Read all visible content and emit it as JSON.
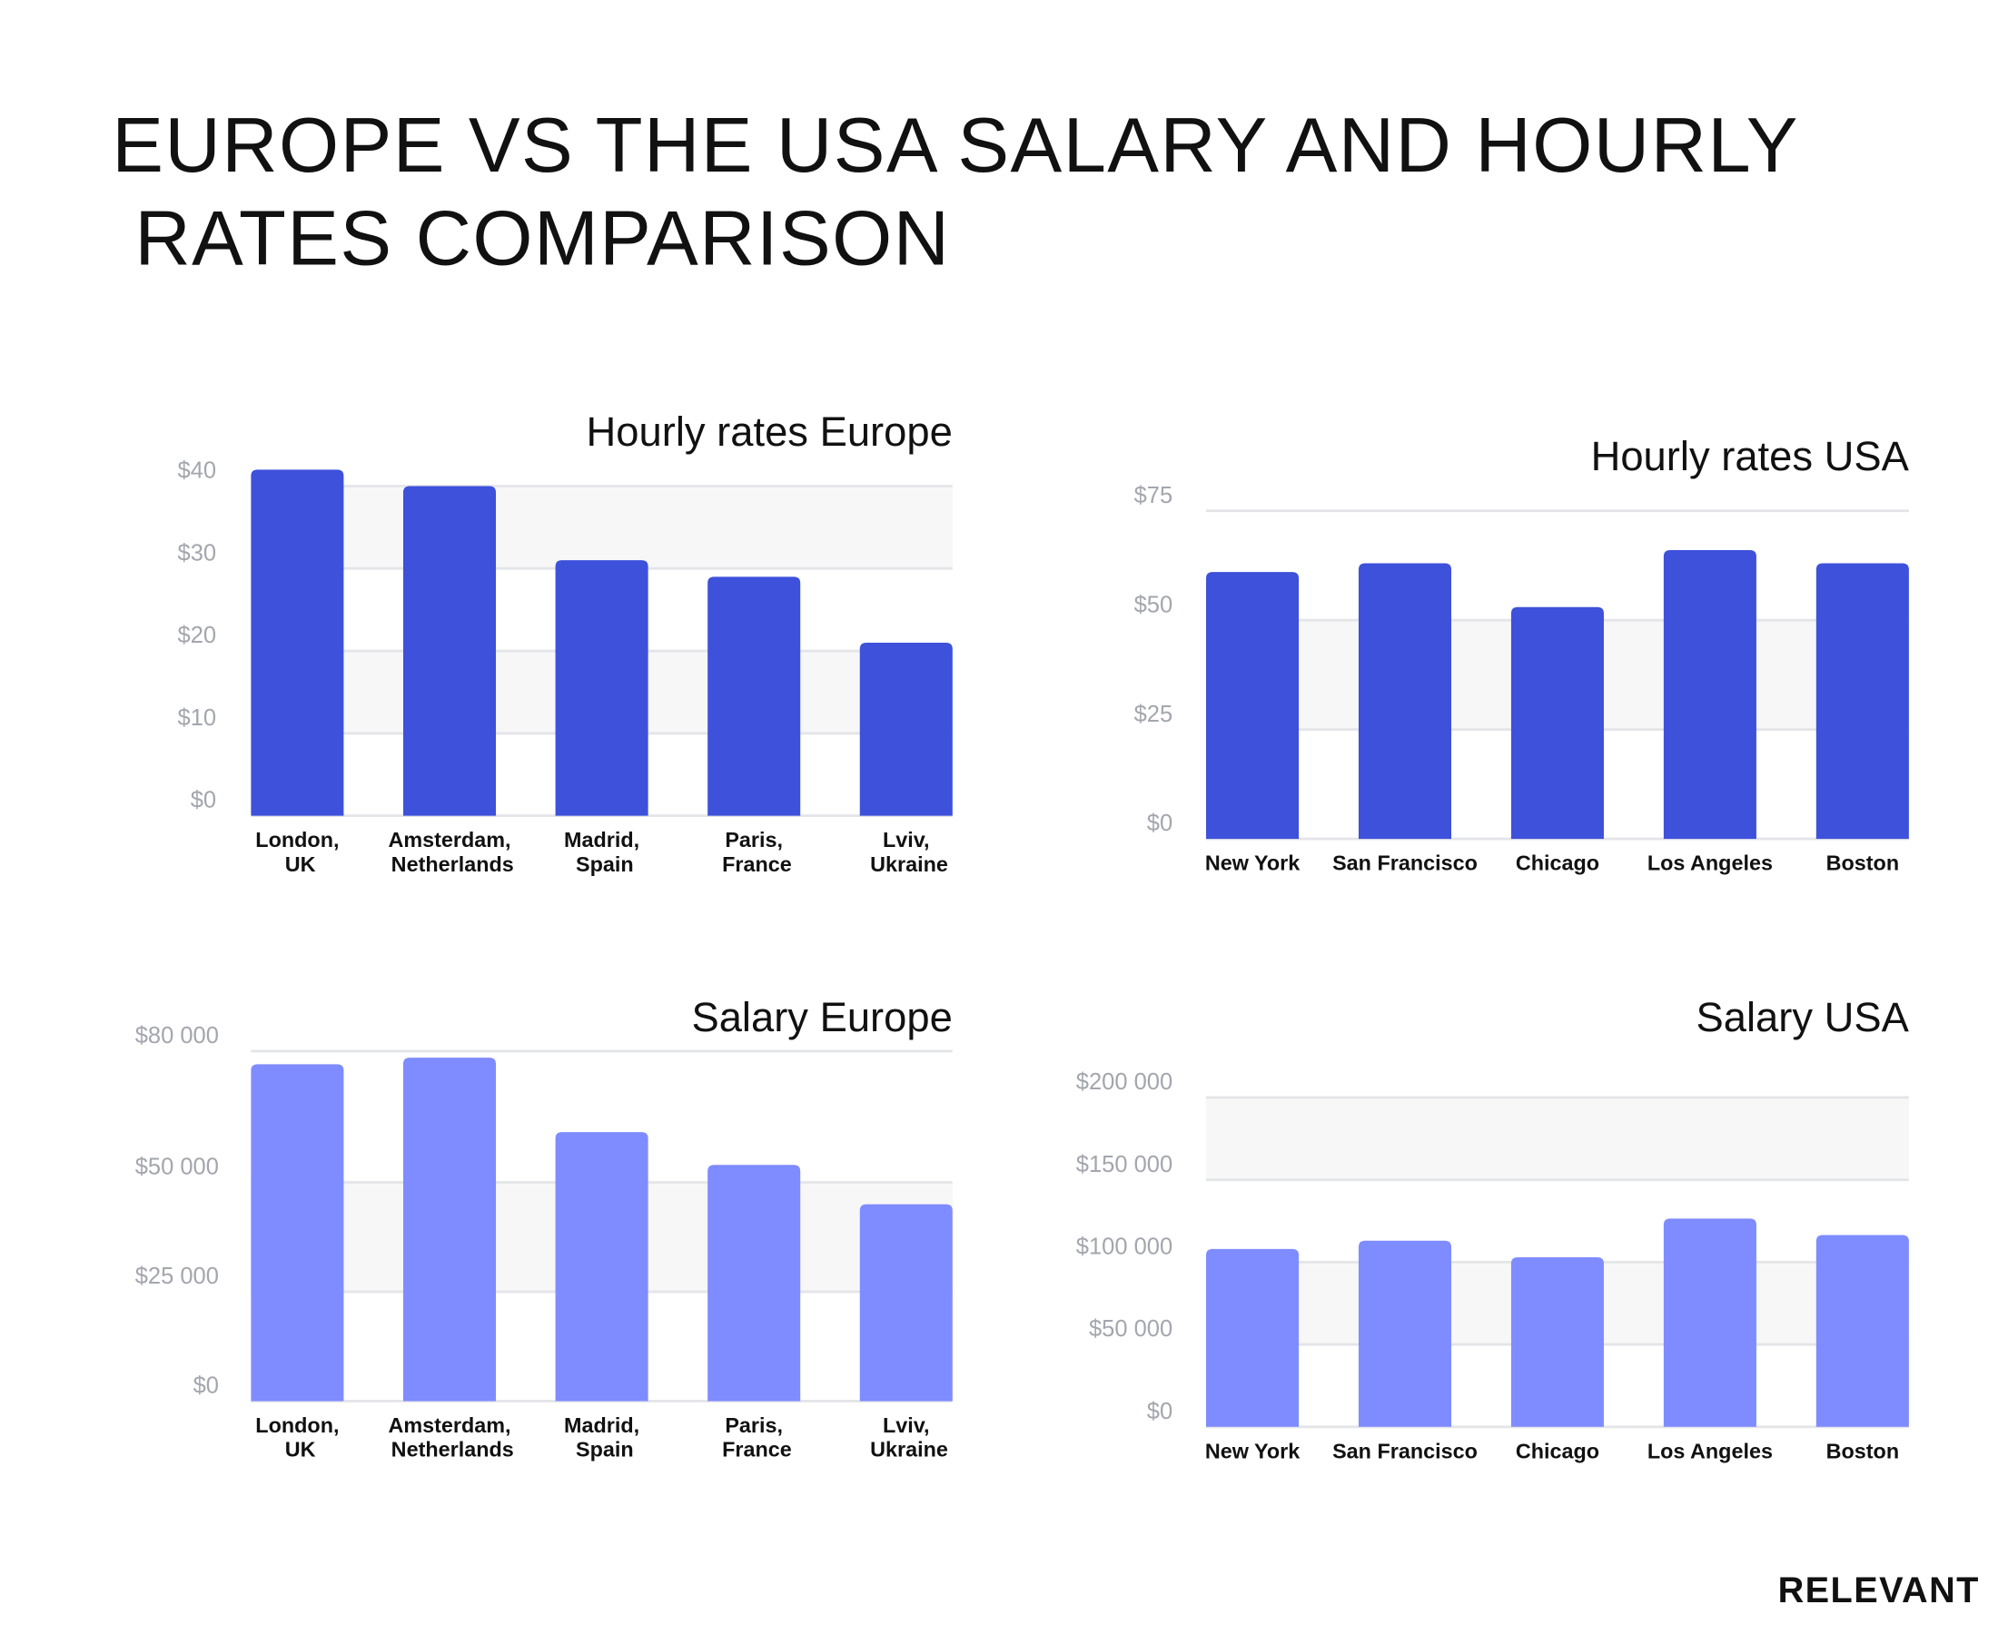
{
  "title": "EUROPE VS THE USA SALARY AND HOURLY RATES COMPARISON",
  "brand": "RELEVANT",
  "chart_data": [
    {
      "type": "bar",
      "title": "Hourly rates Europe",
      "categories": [
        "London, UK",
        "Amsterdam, Netherlands",
        "Madrid, Spain",
        "Paris, France",
        "Lviv, Ukraine"
      ],
      "values": [
        42,
        40,
        31,
        29,
        21
      ],
      "color": "#3d51db",
      "ylim": [
        0,
        42
      ],
      "yticks": [
        {
          "value": 0,
          "label": "$0"
        },
        {
          "value": 10,
          "label": "$10"
        },
        {
          "value": 20,
          "label": "$20"
        },
        {
          "value": 30,
          "label": "$30"
        },
        {
          "value": 40,
          "label": "$40"
        }
      ],
      "grid": true
    },
    {
      "type": "bar",
      "title": "Hourly rates USA",
      "categories": [
        "New York",
        "San Francisco",
        "Chicago",
        "Los Angeles",
        "Boston"
      ],
      "values": [
        61,
        63,
        53,
        66,
        63
      ],
      "color": "#3d51db",
      "ylim": [
        0,
        75
      ],
      "yticks": [
        {
          "value": 0,
          "label": "$0"
        },
        {
          "value": 25,
          "label": "$25"
        },
        {
          "value": 50,
          "label": "$50"
        },
        {
          "value": 75,
          "label": "$75"
        }
      ],
      "grid": true
    },
    {
      "type": "bar",
      "title": "Salary Europe",
      "categories": [
        "London, UK",
        "Amsterdam, Netherlands",
        "Madrid, Spain",
        "Paris, France",
        "Lviv, Ukraine"
      ],
      "values": [
        77000,
        78500,
        61500,
        54000,
        45000
      ],
      "color": "#7f8cff",
      "ylim": [
        0,
        80000
      ],
      "yticks": [
        {
          "value": 0,
          "label": "$0"
        },
        {
          "value": 25000,
          "label": "$25 000"
        },
        {
          "value": 50000,
          "label": "$50 000"
        },
        {
          "value": 80000,
          "label": "$80 000"
        }
      ],
      "grid": true
    },
    {
      "type": "bar",
      "title": "Salary USA",
      "categories": [
        "New York",
        "San Francisco",
        "Chicago",
        "Los Angeles",
        "Boston"
      ],
      "values": [
        108000,
        113000,
        103000,
        126500,
        116500
      ],
      "color": "#7f8cff",
      "ylim": [
        0,
        200000
      ],
      "yticks": [
        {
          "value": 0,
          "label": "$0"
        },
        {
          "value": 50000,
          "label": "$50 000"
        },
        {
          "value": 100000,
          "label": "$100 000"
        },
        {
          "value": 150000,
          "label": "$150 000"
        },
        {
          "value": 200000,
          "label": "$200 000"
        }
      ],
      "grid": true
    }
  ]
}
